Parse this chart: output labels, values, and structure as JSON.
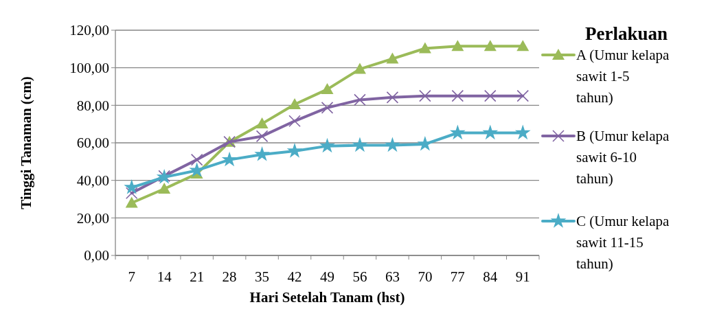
{
  "chart_data": {
    "type": "line",
    "xlabel": "Hari Setelah Tanam (hst)",
    "ylabel": "Tinggi Tanaman (cm)",
    "legend_title": "Perlakuan",
    "legend": "right",
    "grid": "y",
    "line_style": "solid",
    "categories": [
      "7",
      "14",
      "21",
      "28",
      "35",
      "42",
      "49",
      "56",
      "63",
      "70",
      "77",
      "84",
      "91"
    ],
    "ylim": [
      0,
      120
    ],
    "yticks": [
      {
        "value": 0,
        "label": "0,00"
      },
      {
        "value": 20,
        "label": "20,00"
      },
      {
        "value": 40,
        "label": "40,00"
      },
      {
        "value": 60,
        "label": "60,00"
      },
      {
        "value": 80,
        "label": "80,00"
      },
      {
        "value": 100,
        "label": "100,00"
      },
      {
        "value": 120,
        "label": "120,00"
      }
    ],
    "series": [
      {
        "name": "A (Umur kelapa sawit  1-5 tahun)",
        "color": "#9bbb59",
        "marker": "triangle",
        "values": [
          28,
          35.5,
          43.5,
          60.5,
          70.2,
          80.5,
          88.5,
          99.3,
          104.8,
          110.3,
          111.5,
          111.5,
          111.5
        ]
      },
      {
        "name": "B (Umur kelapa sawit 6-10 tahun)",
        "color": "#8064a2",
        "marker": "cross",
        "values": [
          33.2,
          42.3,
          51,
          60.5,
          63.5,
          71.6,
          78.7,
          82.9,
          84.2,
          85,
          85,
          85,
          85
        ]
      },
      {
        "name": "C (Umur kelapa sawit 11-15 tahun)",
        "color": "#4bacc6",
        "marker": "star",
        "values": [
          36.2,
          41.7,
          45.3,
          51,
          53.8,
          55.6,
          58.3,
          58.7,
          58.7,
          59.3,
          65.3,
          65.3,
          65.3
        ]
      }
    ]
  }
}
